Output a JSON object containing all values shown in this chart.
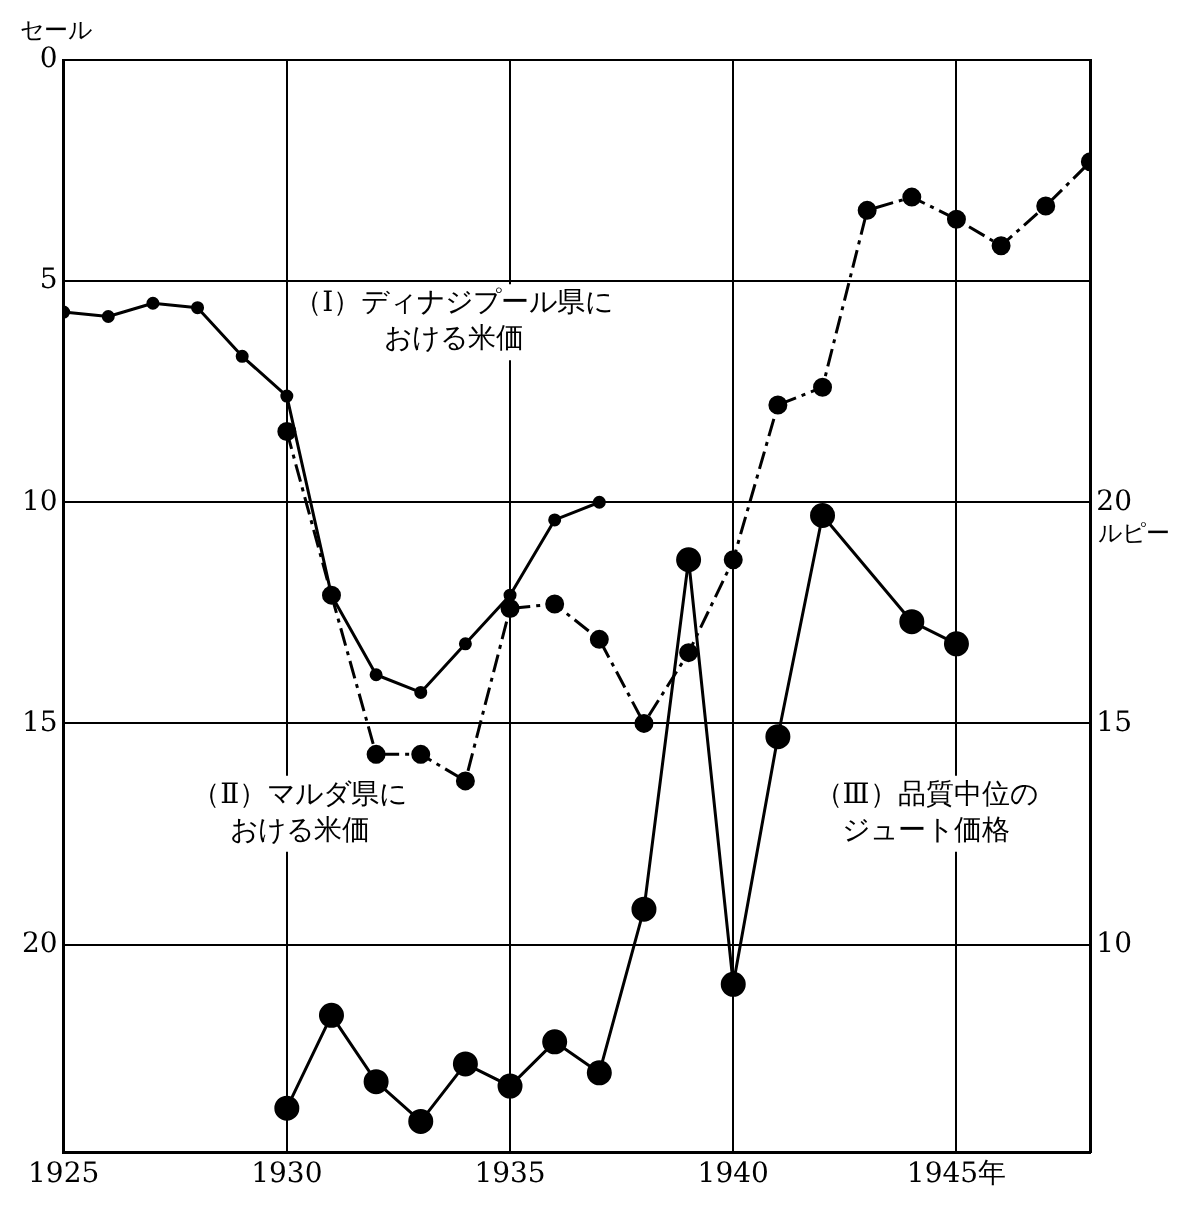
{
  "chart_data": {
    "type": "line",
    "ylabel": "セール",
    "y2label": "ルピー",
    "xlim": [
      1925,
      1948
    ],
    "xticks": [
      1925,
      1930,
      1935,
      1940,
      {
        "value": 1945,
        "label": "1945年"
      }
    ],
    "ylim": [
      24.7,
      0
    ],
    "yticks": [
      0,
      5,
      10,
      15,
      20
    ],
    "y2lim": [
      5.3,
      30
    ],
    "y2ticks": [
      10,
      15,
      20
    ],
    "grid": true,
    "legend": false,
    "marker": "circle",
    "series": [
      {
        "color": "#000000",
        "line_style": "solid",
        "x": [
          1925,
          1926,
          1927,
          1928,
          1929,
          1930,
          1931,
          1932,
          1933,
          1934,
          1935,
          1936,
          1937
        ],
        "values": [
          5.7,
          5.8,
          5.5,
          5.6,
          6.7,
          7.6,
          12.1,
          13.9,
          14.3,
          13.2,
          12.1,
          10.4,
          10.0
        ]
      },
      {
        "color": "#000000",
        "line_style": "dashed",
        "x": [
          1930,
          1931,
          1932,
          1933,
          1934,
          1935,
          1936,
          1937,
          1938,
          1939,
          1940,
          1941,
          1942,
          1943,
          1944,
          1945,
          1946,
          1947,
          1948
        ],
        "values": [
          8.4,
          12.1,
          15.7,
          15.7,
          16.3,
          12.4,
          12.3,
          13.1,
          15.0,
          13.4,
          11.3,
          7.8,
          7.4,
          3.4,
          3.1,
          3.6,
          4.2,
          3.3,
          2.3
        ]
      },
      {
        "color": "#000000",
        "line_style": "solid",
        "axis": "y2",
        "x": [
          1930,
          1931,
          1932,
          1933,
          1934,
          1935,
          1936,
          1937,
          1938,
          1939,
          1940,
          1941,
          1942,
          1944,
          1945
        ],
        "values": [
          6.3,
          8.4,
          6.9,
          6.0,
          7.3,
          6.8,
          7.8,
          7.1,
          10.8,
          18.7,
          9.1,
          14.7,
          19.7,
          17.3,
          16.8
        ]
      }
    ],
    "annotations": [
      "（Ⅰ）ディナジプール県における米価",
      "（Ⅱ）マルダ県における米価",
      "（Ⅲ）品質中位のジュート価格"
    ]
  }
}
